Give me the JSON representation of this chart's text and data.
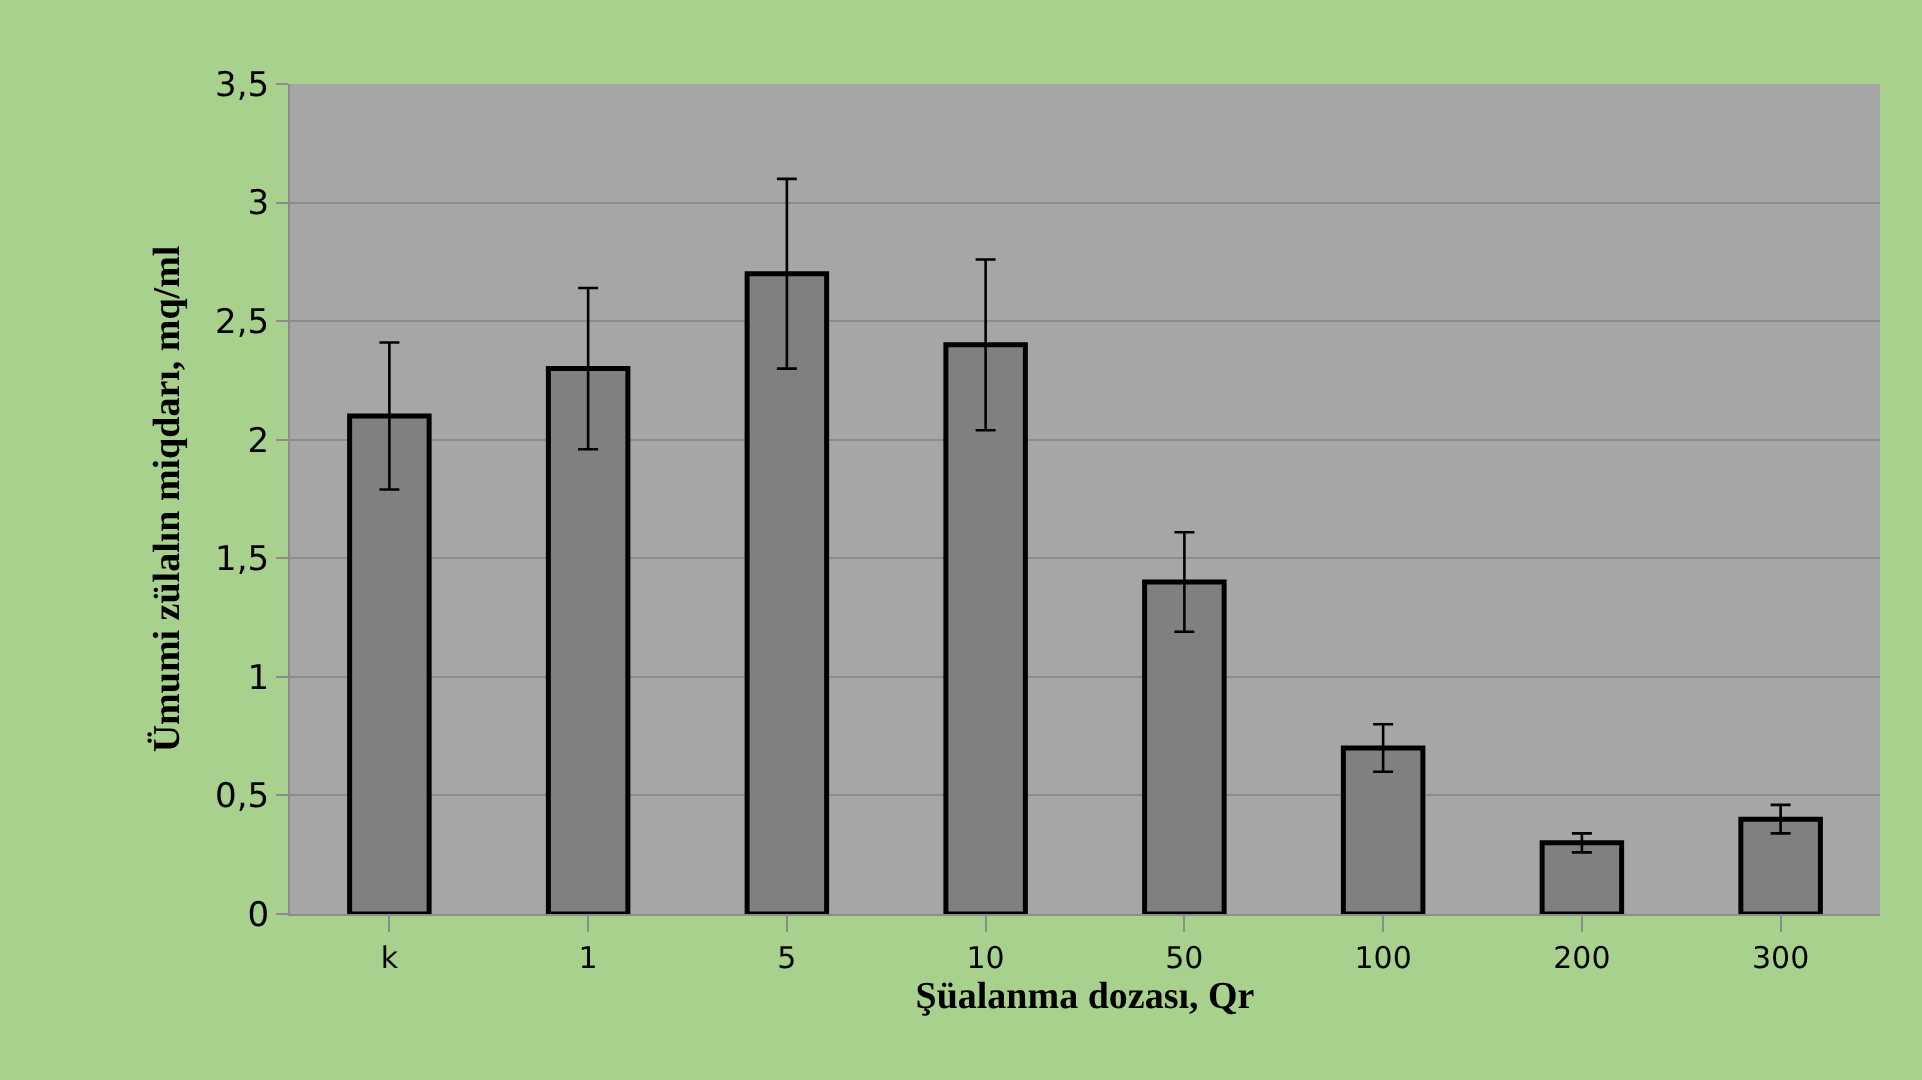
{
  "chart_data": {
    "type": "bar",
    "xlabel": "Şüalanma dozası, Qr",
    "ylabel": "Ümumi zülalın miqdarı, mq/ml",
    "categories": [
      "k",
      "1",
      "5",
      "10",
      "50",
      "100",
      "200",
      "300"
    ],
    "values": [
      2.1,
      2.3,
      2.7,
      2.4,
      1.4,
      0.7,
      0.3,
      0.4
    ],
    "errors": [
      0.31,
      0.34,
      0.4,
      0.36,
      0.21,
      0.1,
      0.04,
      0.06
    ],
    "color": "#808080",
    "ylim": [
      0,
      3.5
    ],
    "yticks": [
      0,
      {
        "value": 0.5,
        "label": "0,5"
      },
      1,
      {
        "value": 1.5,
        "label": "1,5"
      },
      2,
      {
        "value": 2.5,
        "label": "2,5"
      },
      3,
      {
        "value": 3.5,
        "label": "3,5"
      }
    ],
    "grid": "y"
  }
}
